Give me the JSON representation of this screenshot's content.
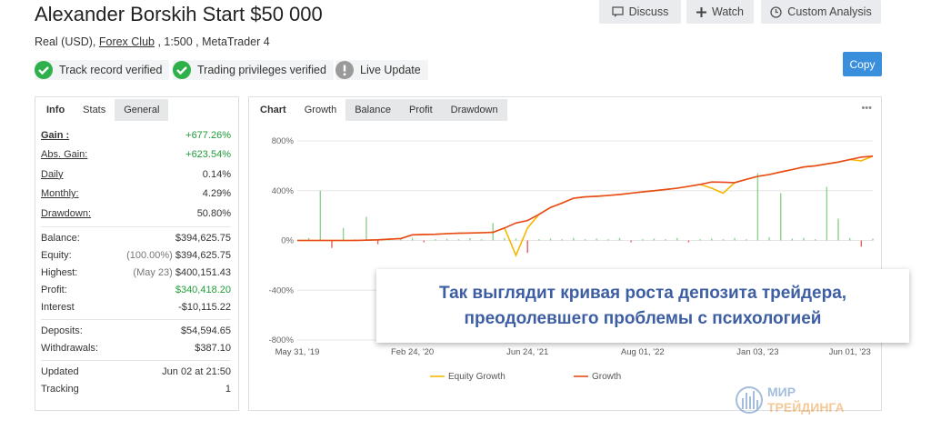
{
  "header": {
    "title": "Alexander Borskih Start $50 000",
    "buttons": [
      "Discuss",
      "Watch",
      "Custom Analysis"
    ],
    "subtitle_prefix": "Real (USD),",
    "broker": "Forex Club",
    "subtitle_suffix": ", 1:500 , MetaTrader 4",
    "badges": [
      "Track record verified",
      "Trading privileges verified",
      "Live Update"
    ],
    "copy": "Copy"
  },
  "stats": {
    "tabs": [
      "Info",
      "Stats",
      "General"
    ],
    "groups": [
      [
        {
          "label": "Gain :",
          "value": "+677.26%",
          "color": "#1f9d3a"
        },
        {
          "label": "Abs. Gain:",
          "value": "+623.54%",
          "color": "#1f9d3a"
        },
        {
          "label": "Daily",
          "value": "0.14%"
        },
        {
          "label": "Monthly:",
          "value": "4.29%"
        },
        {
          "label": "Drawdown:",
          "value": "50.80%"
        }
      ],
      [
        {
          "label": "Balance:",
          "value": "$394,625.75"
        },
        {
          "label": "Equity:",
          "note": "(100.00%)",
          "value": "$394,625.75"
        },
        {
          "label": "Highest:",
          "note": "(May 23)",
          "value": "$400,151.43"
        },
        {
          "label": "Profit:",
          "value": "$340,418.20",
          "color": "#1f9d3a"
        },
        {
          "label": "Interest",
          "value": "-$10,115.22"
        }
      ],
      [
        {
          "label": "Deposits:",
          "value": "$54,594.65"
        },
        {
          "label": "Withdrawals:",
          "value": "$387.10"
        }
      ],
      [
        {
          "label": "Updated",
          "value": "Jun 02 at 21:50"
        },
        {
          "label": "Tracking",
          "value": "1"
        }
      ]
    ]
  },
  "chart_tabs": [
    "Chart",
    "Growth",
    "Balance",
    "Profit",
    "Drawdown"
  ],
  "chart_menu": "•••",
  "chart_data": {
    "type": "line",
    "categories": [
      "May 31, '19",
      null,
      null,
      null,
      null,
      null,
      null,
      null,
      null,
      null,
      "Feb 24, '20",
      null,
      null,
      null,
      null,
      null,
      null,
      null,
      null,
      null,
      "Jun 24, '21",
      null,
      null,
      null,
      null,
      null,
      null,
      null,
      null,
      null,
      "Aug 01, '22",
      null,
      null,
      null,
      null,
      null,
      null,
      null,
      null,
      null,
      "Jan 03, '23",
      null,
      null,
      null,
      null,
      null,
      null,
      null,
      "Jun 01, '23",
      null,
      null
    ],
    "series": [
      {
        "name": "Equity Growth",
        "color": "#f5b800",
        "values": [
          0,
          0,
          0,
          0,
          0,
          0,
          2,
          5,
          10,
          15,
          45,
          48,
          50,
          55,
          58,
          60,
          62,
          65,
          100,
          -120,
          100,
          210,
          265,
          300,
          340,
          350,
          355,
          362,
          370,
          380,
          390,
          400,
          410,
          420,
          435,
          450,
          420,
          380,
          465,
          490,
          515,
          530,
          550,
          570,
          590,
          600,
          615,
          630,
          650,
          640,
          677
        ]
      },
      {
        "name": "Growth",
        "color": "#e8491d",
        "values": [
          0,
          0,
          0,
          0,
          0,
          0,
          2,
          5,
          10,
          15,
          45,
          48,
          50,
          55,
          58,
          60,
          62,
          65,
          100,
          140,
          160,
          210,
          265,
          300,
          340,
          350,
          355,
          362,
          370,
          380,
          390,
          400,
          410,
          420,
          435,
          450,
          470,
          468,
          465,
          490,
          515,
          530,
          550,
          570,
          590,
          600,
          615,
          630,
          650,
          670,
          677
        ]
      }
    ],
    "bars": {
      "positive_color": "#8fd08f",
      "negative_color": "#e06060",
      "values": [
        0,
        20,
        400,
        -60,
        100,
        10,
        190,
        -30,
        15,
        10,
        20,
        -15,
        10,
        15,
        10,
        20,
        10,
        140,
        20,
        15,
        -100,
        10,
        15,
        10,
        20,
        10,
        15,
        10,
        20,
        -15,
        10,
        15,
        10,
        20,
        -15,
        10,
        15,
        10,
        20,
        10,
        540,
        25,
        380,
        15,
        20,
        10,
        430,
        175,
        20,
        -50,
        15
      ]
    },
    "ylim": [
      -800,
      800
    ],
    "yticks": [
      {
        "value": 800,
        "label": "800%"
      },
      {
        "value": 400,
        "label": "400%"
      },
      {
        "value": 0,
        "label": "0%"
      },
      {
        "value": -400,
        "label": "-400%"
      },
      {
        "value": -800,
        "label": "-800%"
      }
    ],
    "grid": true
  },
  "overlay": [
    "Так выглядит кривая роста депозита трейдера,",
    "преодолевшего проблемы с психологией"
  ],
  "watermark": [
    "МИР",
    "ТРЕЙДИНГА"
  ]
}
